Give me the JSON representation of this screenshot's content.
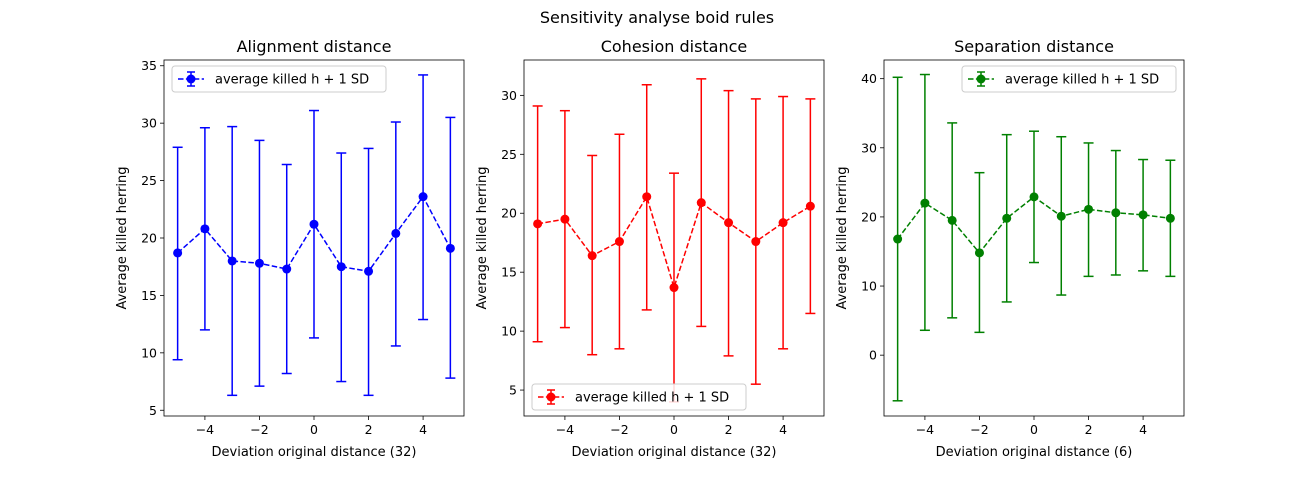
{
  "figure": {
    "suptitle": "Sensitivity analyse boid rules"
  },
  "chart_data": [
    {
      "type": "line",
      "title": "Alignment distance",
      "xlabel": "Deviation original distance (32)",
      "ylabel": "Average killed herring",
      "xlim": [
        -5.5,
        5.5
      ],
      "ylim": [
        4.5,
        35.5
      ],
      "xticks": [
        -4,
        -2,
        0,
        2,
        4
      ],
      "xtick_labels": [
        "−4",
        "−2",
        "0",
        "2",
        "4"
      ],
      "yticks": [
        5,
        10,
        15,
        20,
        25,
        30,
        35
      ],
      "ytick_labels": [
        "5",
        "10",
        "15",
        "20",
        "25",
        "30",
        "35"
      ],
      "legend": {
        "label": "average killed h + 1 SD",
        "position": "top-left"
      },
      "color": "#0000ff",
      "grid": false,
      "series": [
        {
          "name": "average killed h + 1 SD",
          "x": [
            -5,
            -4,
            -3,
            -2,
            -1,
            0,
            1,
            2,
            3,
            4,
            5
          ],
          "y": [
            18.7,
            20.8,
            18.0,
            17.8,
            17.3,
            21.2,
            17.5,
            17.1,
            20.4,
            23.6,
            19.1
          ],
          "err_upper": [
            27.9,
            29.6,
            29.7,
            28.5,
            26.4,
            31.1,
            27.4,
            27.8,
            30.1,
            34.2,
            30.5
          ],
          "err_lower": [
            9.4,
            12.0,
            6.3,
            7.1,
            8.2,
            11.3,
            7.5,
            6.3,
            10.6,
            12.9,
            7.8
          ]
        }
      ]
    },
    {
      "type": "line",
      "title": "Cohesion distance",
      "xlabel": "Deviation original distance (32)",
      "ylabel": "Average killed herring",
      "xlim": [
        -5.5,
        5.5
      ],
      "ylim": [
        2.8,
        33.0
      ],
      "xticks": [
        -4,
        -2,
        0,
        2,
        4
      ],
      "xtick_labels": [
        "−4",
        "−2",
        "0",
        "2",
        "4"
      ],
      "yticks": [
        5,
        10,
        15,
        20,
        25,
        30
      ],
      "ytick_labels": [
        "5",
        "10",
        "15",
        "20",
        "25",
        "30"
      ],
      "legend": {
        "label": "average killed h + 1 SD",
        "position": "bottom-left"
      },
      "color": "#ff0000",
      "grid": false,
      "series": [
        {
          "name": "average killed h + 1 SD",
          "x": [
            -5,
            -4,
            -3,
            -2,
            -1,
            0,
            1,
            2,
            3,
            4,
            5
          ],
          "y": [
            19.1,
            19.5,
            16.4,
            17.6,
            21.4,
            13.7,
            20.9,
            19.2,
            17.6,
            19.2,
            20.6
          ],
          "err_upper": [
            29.1,
            28.7,
            24.9,
            26.7,
            30.9,
            23.4,
            31.4,
            30.4,
            29.7,
            29.9,
            29.7
          ],
          "err_lower": [
            9.1,
            10.3,
            8.0,
            8.5,
            11.8,
            4.0,
            10.4,
            7.9,
            5.5,
            8.5,
            11.5
          ]
        }
      ]
    },
    {
      "type": "line",
      "title": "Separation distance",
      "xlabel": "Deviation original distance (6)",
      "ylabel": "Average killed herring",
      "xlim": [
        -5.5,
        5.5
      ],
      "ylim": [
        -8.8,
        42.7
      ],
      "xticks": [
        -4,
        -2,
        0,
        2,
        4
      ],
      "xtick_labels": [
        "−4",
        "−2",
        "0",
        "2",
        "4"
      ],
      "yticks": [
        0,
        10,
        20,
        30,
        40
      ],
      "ytick_labels": [
        "0",
        "10",
        "20",
        "30",
        "40"
      ],
      "legend": {
        "label": "average killed h + 1 SD",
        "position": "top-right"
      },
      "color": "#008000",
      "grid": false,
      "series": [
        {
          "name": "average killed h + 1 SD",
          "x": [
            -5,
            -4,
            -3,
            -2,
            -1,
            0,
            1,
            2,
            3,
            4,
            5
          ],
          "y": [
            16.8,
            22.0,
            19.5,
            14.8,
            19.8,
            22.9,
            20.1,
            21.1,
            20.6,
            20.3,
            19.8
          ],
          "err_upper": [
            40.2,
            40.6,
            33.6,
            26.4,
            31.9,
            32.4,
            31.6,
            30.7,
            29.6,
            28.3,
            28.2
          ],
          "err_lower": [
            -6.6,
            3.6,
            5.4,
            3.3,
            7.7,
            13.4,
            8.7,
            11.4,
            11.6,
            12.2,
            11.4
          ]
        }
      ]
    }
  ]
}
